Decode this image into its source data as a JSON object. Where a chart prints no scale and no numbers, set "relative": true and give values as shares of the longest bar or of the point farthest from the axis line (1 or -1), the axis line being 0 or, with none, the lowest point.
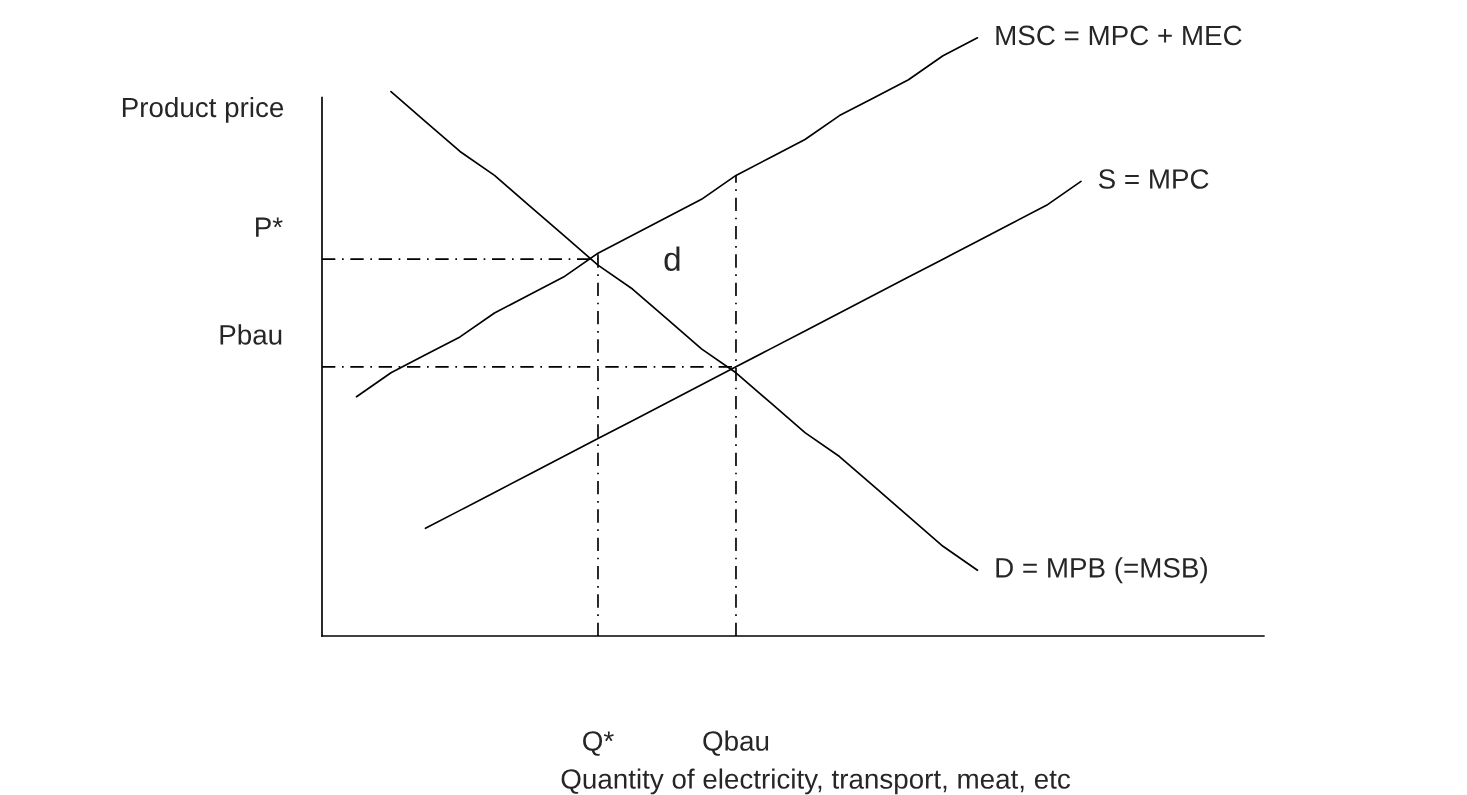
{
  "chart_data": {
    "type": "line",
    "relative": true,
    "xlabel": "Quantity of electricity, transport, meat, etc",
    "ylabel": "Product price",
    "categories": [
      null,
      null,
      null,
      null,
      null,
      null,
      null,
      null,
      "Q*",
      null,
      null,
      null,
      "Qbau",
      null,
      null,
      null,
      null,
      null,
      null,
      null,
      null,
      null,
      null,
      null,
      null,
      null,
      null,
      null
    ],
    "series": [
      {
        "name": "MSC = MPC + MEC",
        "color": "#000000",
        "values": [
          null,
          0.4,
          0.44,
          0.47,
          0.5,
          0.54,
          0.57,
          0.6,
          0.64,
          0.67,
          0.7,
          0.73,
          0.77,
          0.8,
          0.83,
          0.87,
          0.9,
          0.93,
          0.97,
          1.0,
          null,
          null,
          null,
          null,
          null,
          null,
          null,
          null
        ]
      },
      {
        "name": "S = MPC",
        "color": "#000000",
        "values": [
          null,
          null,
          null,
          0.18,
          0.21,
          0.24,
          0.27,
          0.3,
          0.33,
          0.36,
          0.39,
          0.42,
          0.45,
          0.48,
          0.51,
          0.54,
          0.57,
          0.6,
          0.63,
          0.66,
          0.69,
          0.72,
          0.76,
          null,
          null,
          null,
          null,
          null
        ]
      },
      {
        "name": "D = MPB (=MSB)",
        "color": "#000000",
        "values": [
          null,
          null,
          0.91,
          0.86,
          0.81,
          0.77,
          0.72,
          0.67,
          0.62,
          0.58,
          0.53,
          0.48,
          0.44,
          0.39,
          0.34,
          0.3,
          0.25,
          0.2,
          0.15,
          0.11,
          null,
          null,
          null,
          null,
          null,
          null,
          null,
          null
        ]
      }
    ],
    "ref_lines": [
      {
        "axis": "x",
        "value": "Q*",
        "color": "#000000",
        "line_style": "dashed"
      },
      {
        "axis": "x",
        "value": "Qbau",
        "color": "#000000",
        "line_style": "dashed"
      },
      {
        "axis": "y",
        "value": 0.63,
        "label": "P*",
        "color": "#000000",
        "line_style": "dashed"
      },
      {
        "axis": "y",
        "value": 0.45,
        "label": "Pbau",
        "color": "#000000",
        "line_style": "dashed"
      }
    ],
    "annotations": [
      "d"
    ]
  }
}
